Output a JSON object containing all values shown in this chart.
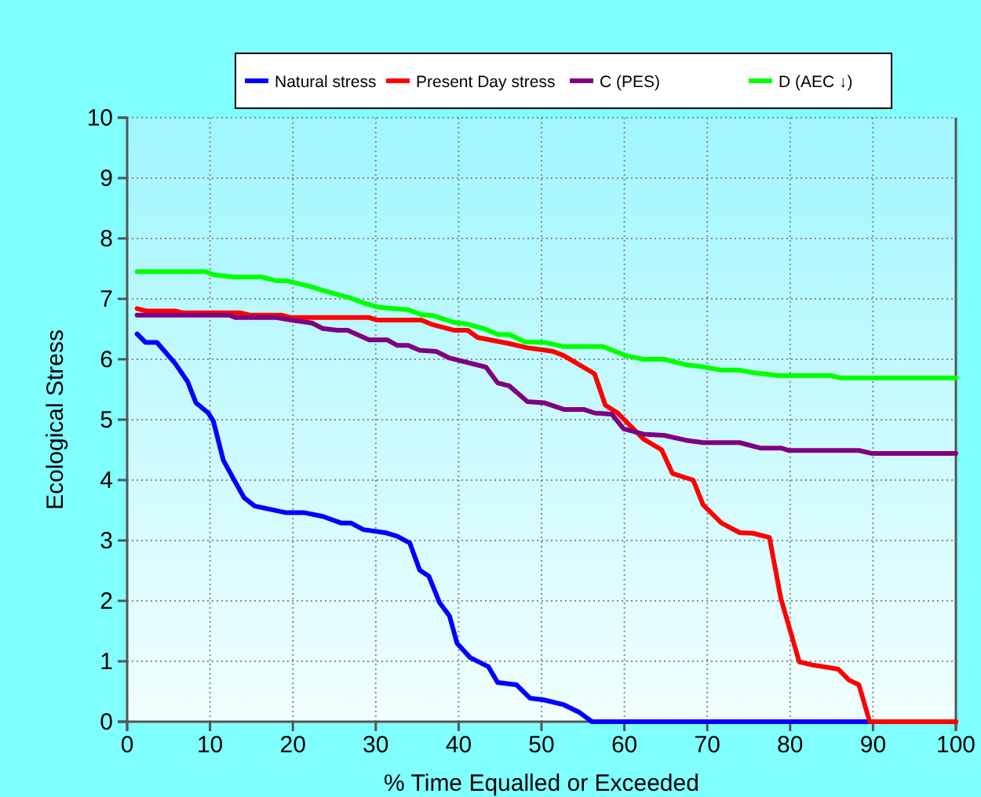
{
  "chart_data": {
    "type": "line",
    "xlabel": "% Time Equalled or Exceeded",
    "ylabel": "Ecological Stress",
    "xlim": [
      0,
      100
    ],
    "xticks": [
      0,
      10,
      20,
      30,
      40,
      50,
      60,
      70,
      80,
      90,
      100
    ],
    "ylim": [
      0,
      10
    ],
    "yticks": [
      0,
      1,
      2,
      3,
      4,
      5,
      6,
      7,
      8,
      9,
      10
    ],
    "grid": true,
    "legend": "top",
    "line_style": "solid",
    "marker": "none",
    "series": [
      {
        "name": "Natural stress",
        "color": "#0000ff",
        "x": [
          1.2,
          2.2,
          3.6,
          5.8,
          7.3,
          8.3,
          9.8,
          10.4,
          11.6,
          12.8,
          14.1,
          15.4,
          19.2,
          21.4,
          23.6,
          25.8,
          27,
          28.5,
          31.1,
          32.6,
          34.1,
          35.3,
          36.4,
          37.7,
          38.9,
          39.8,
          41.4,
          43.6,
          44.7,
          47,
          48.6,
          50.3,
          52.7,
          54.5,
          56.1,
          100
        ],
        "values": [
          6.42,
          6.28,
          6.28,
          5.93,
          5.63,
          5.28,
          5.11,
          4.98,
          4.33,
          4.03,
          3.71,
          3.57,
          3.46,
          3.46,
          3.4,
          3.29,
          3.29,
          3.18,
          3.13,
          3.07,
          2.96,
          2.51,
          2.41,
          1.97,
          1.75,
          1.3,
          1.06,
          0.91,
          0.65,
          0.61,
          0.39,
          0.36,
          0.28,
          0.16,
          0,
          0
        ]
      },
      {
        "name": "Present Day stress",
        "color": "#ff0000",
        "x": [
          1.2,
          2.3,
          5.8,
          6.7,
          13.6,
          14.8,
          18.6,
          19.8,
          29.2,
          30.1,
          35.5,
          36.7,
          39.5,
          41.1,
          42.3,
          46.1,
          48.3,
          50.5,
          51.4,
          52.7,
          56.4,
          57.7,
          59.2,
          62.3,
          64.5,
          65.8,
          68.3,
          69.5,
          71.7,
          73.9,
          75.5,
          77.5,
          78.9,
          81.1,
          82.7,
          85.8,
          87.1,
          88.3,
          89.6,
          100
        ],
        "values": [
          6.84,
          6.8,
          6.8,
          6.77,
          6.77,
          6.73,
          6.73,
          6.69,
          6.69,
          6.65,
          6.65,
          6.58,
          6.48,
          6.48,
          6.36,
          6.26,
          6.19,
          6.15,
          6.13,
          6.06,
          5.76,
          5.24,
          5.11,
          4.68,
          4.5,
          4.11,
          4,
          3.59,
          3.29,
          3.13,
          3.12,
          3.05,
          2.03,
          0.99,
          0.94,
          0.87,
          0.69,
          0.61,
          0,
          0
        ]
      },
      {
        "name": "C (PES)",
        "color": "#800080",
        "x": [
          1.2,
          12.3,
          13.1,
          18,
          19.8,
          22.3,
          23.6,
          25.4,
          26.6,
          29.2,
          31.4,
          32.6,
          33.9,
          35.3,
          37.3,
          38.9,
          43.3,
          44.7,
          46.1,
          48.3,
          50.3,
          52.7,
          55.1,
          56.4,
          58.5,
          59.9,
          62.3,
          64.8,
          67.4,
          69.5,
          73.9,
          76.4,
          78.9,
          79.9,
          88.3,
          89.9,
          100
        ],
        "values": [
          6.73,
          6.73,
          6.69,
          6.69,
          6.65,
          6.6,
          6.51,
          6.48,
          6.48,
          6.32,
          6.32,
          6.23,
          6.23,
          6.15,
          6.13,
          6.02,
          5.87,
          5.61,
          5.56,
          5.3,
          5.28,
          5.17,
          5.17,
          5.11,
          5.09,
          4.85,
          4.76,
          4.74,
          4.66,
          4.62,
          4.62,
          4.53,
          4.53,
          4.49,
          4.49,
          4.44,
          4.44
        ]
      },
      {
        "name": "D (AEC ↓)",
        "color": "#00ff00",
        "x": [
          1.2,
          9.5,
          10.4,
          12.9,
          16.3,
          18,
          19.2,
          22,
          23.6,
          27,
          28.6,
          30.4,
          32,
          33.9,
          35.5,
          37,
          39.5,
          41.1,
          43,
          44.8,
          46.1,
          48,
          50.3,
          52.7,
          57.4,
          60.2,
          62.3,
          64.8,
          67.4,
          69.3,
          71.7,
          73.9,
          75.5,
          78.6,
          84.9,
          86.1,
          100
        ],
        "values": [
          7.45,
          7.45,
          7.4,
          7.36,
          7.36,
          7.3,
          7.3,
          7.21,
          7.14,
          7.01,
          6.93,
          6.86,
          6.84,
          6.82,
          6.74,
          6.72,
          6.61,
          6.58,
          6.51,
          6.41,
          6.41,
          6.29,
          6.28,
          6.21,
          6.21,
          6.06,
          6,
          6,
          5.91,
          5.88,
          5.82,
          5.82,
          5.78,
          5.73,
          5.73,
          5.69,
          5.69
        ]
      }
    ]
  }
}
